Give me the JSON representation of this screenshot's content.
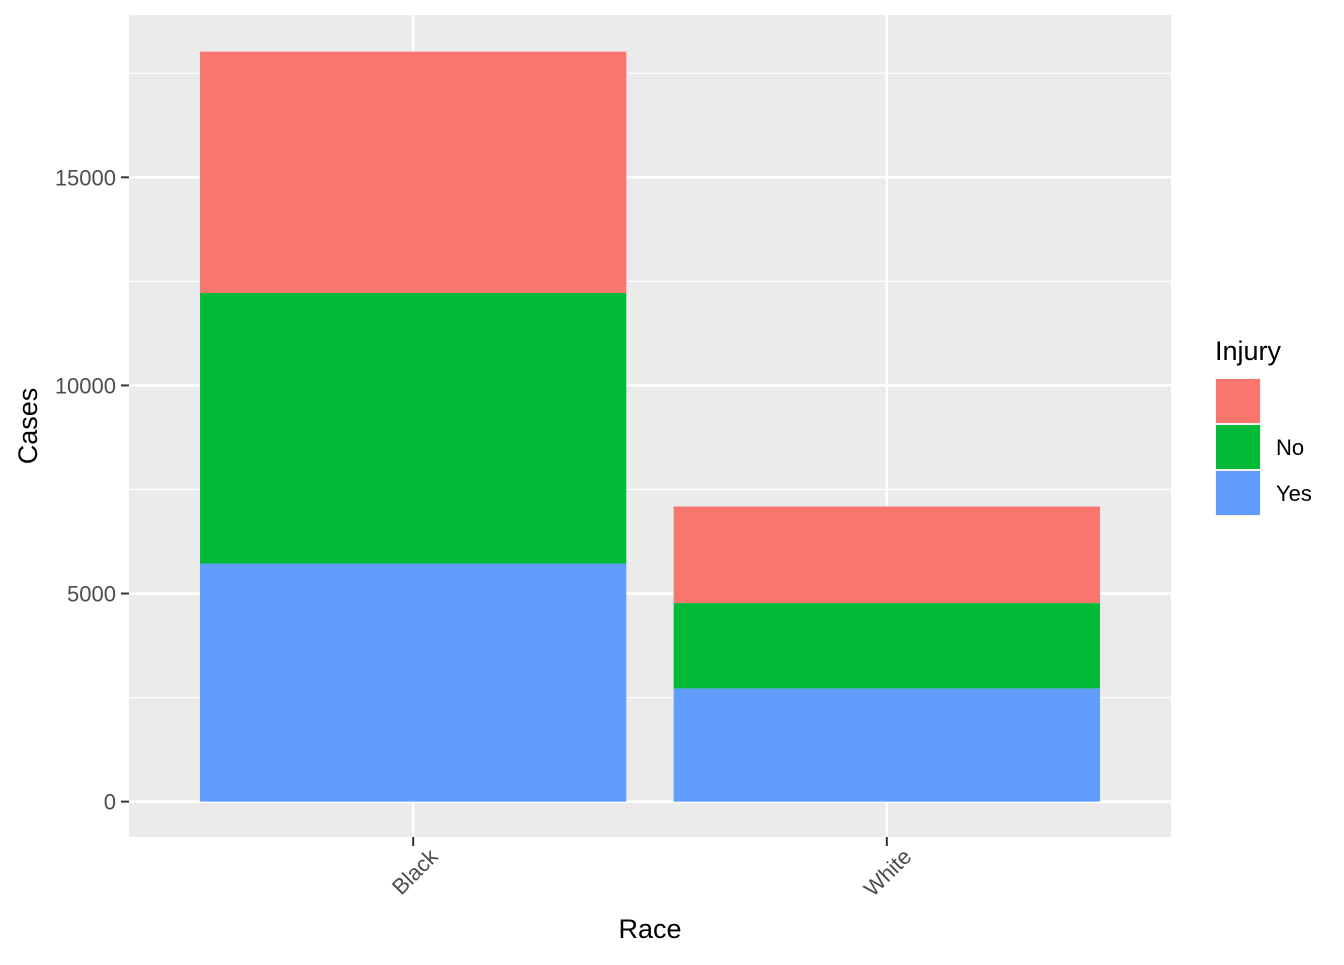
{
  "chart_data": {
    "type": "bar",
    "stacked": true,
    "categories": [
      "Black",
      "White"
    ],
    "series": [
      {
        "name": "",
        "values": [
          5800,
          2320
        ],
        "color": "#F8766D"
      },
      {
        "name": "No",
        "values": [
          6500,
          2050
        ],
        "color": "#00BA38"
      },
      {
        "name": "Yes",
        "values": [
          5720,
          2720
        ],
        "color": "#619CFF"
      }
    ],
    "title": "",
    "xlabel": "Race",
    "ylabel": "Cases",
    "ylim": [
      -850,
      18900
    ],
    "yticks": [
      0,
      5000,
      10000,
      15000
    ],
    "ytick_labels": [
      "0",
      "5000",
      "10000",
      "15000"
    ],
    "legend": {
      "title": "Injury",
      "placement": "right"
    },
    "grid": true,
    "panel_background": "#EBEBEB",
    "grid_color": "#FFFFFF"
  }
}
